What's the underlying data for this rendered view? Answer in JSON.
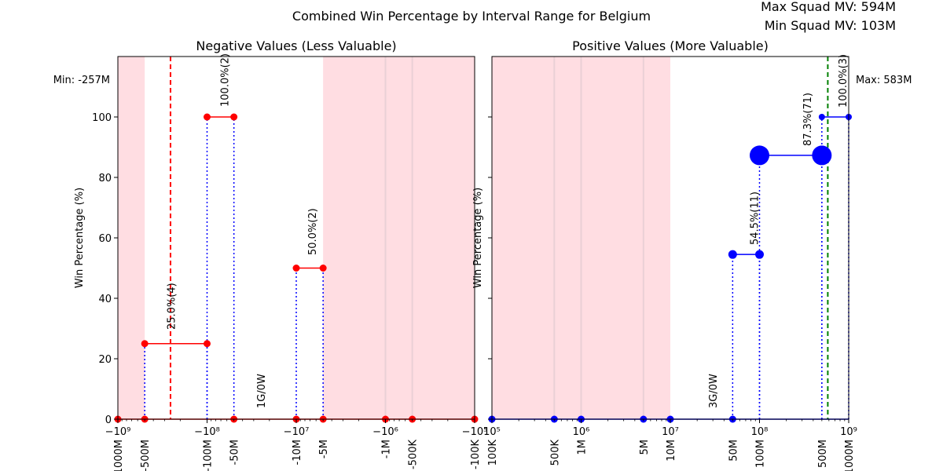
{
  "title": "Combined Win Percentage by Interval Range for Belgium",
  "info": {
    "max_squad_mv": "Max Squad MV: 594M",
    "min_squad_mv": "Min Squad MV: 103M"
  },
  "colors": {
    "negative_line": "#ff0000",
    "positive_line": "#0000ff",
    "connector": "#0000ff",
    "shade": "#ffdde2",
    "label_green": "#008000",
    "label_red": "#ff0000",
    "tick_label_blue": "#0000ff"
  },
  "chart_data": [
    {
      "type": "line",
      "title": "Negative Values (Less Valuable)",
      "ylabel": "Win Percentage (%)",
      "ylim": [
        0,
        120
      ],
      "yticks": [
        0,
        20,
        40,
        60,
        80,
        100
      ],
      "xscale": "symlog-negative",
      "xlim": [
        -1000000000,
        -100000
      ],
      "major_xticks": [
        {
          "value": -1000000000,
          "label": "−10⁹"
        },
        {
          "value": -100000000,
          "label": "−10⁸"
        },
        {
          "value": -10000000,
          "label": "−10⁷"
        },
        {
          "value": -1000000,
          "label": "−10⁶"
        },
        {
          "value": -100000,
          "label": "−10⁵"
        }
      ],
      "interval_labels": [
        {
          "value": -1000000000,
          "label": "-1000M"
        },
        {
          "value": -500000000,
          "label": "-500M"
        },
        {
          "value": -100000000,
          "label": "-100M"
        },
        {
          "value": -50000000,
          "label": "-50M"
        },
        {
          "value": -10000000,
          "label": "-10M"
        },
        {
          "value": -5000000,
          "label": "-5M"
        },
        {
          "value": -1000000,
          "label": "-1M"
        },
        {
          "value": -500000,
          "label": "-500K"
        },
        {
          "value": -100000,
          "label": "-100K"
        }
      ],
      "segments": [
        {
          "x": [
            -500000000,
            -100000000
          ],
          "y": [
            25,
            25
          ],
          "label": "25.0%(4)"
        },
        {
          "x": [
            -100000000,
            -50000000
          ],
          "y": [
            100,
            100
          ],
          "label": "100.0%(2)"
        },
        {
          "x": [
            -10000000,
            -5000000
          ],
          "y": [
            50,
            50
          ],
          "label": "50.0%(2)"
        }
      ],
      "zero_points": [
        -1000000000,
        -500000000,
        -50000000,
        -10000000,
        -5000000,
        -1000000,
        -500000,
        -100000
      ],
      "shaded_ranges": [
        [
          -1000000000,
          -500000000
        ],
        [
          -5000000,
          -100000
        ]
      ],
      "band_lines": [
        -1000000,
        -500000
      ],
      "reference_line": {
        "value": -257000000,
        "label": "Min: -257M"
      },
      "annotations": [
        {
          "x": -25000000,
          "text": "1G/0W"
        }
      ]
    },
    {
      "type": "line",
      "title": "Positive Values (More Valuable)",
      "ylabel": "Win Percentage (%)",
      "ylim": [
        0,
        120
      ],
      "yticks": [
        0,
        20,
        40,
        60,
        80,
        100
      ],
      "xscale": "log",
      "xlim": [
        100000,
        1000000000
      ],
      "major_xticks": [
        {
          "value": 100000,
          "label": "10⁵"
        },
        {
          "value": 1000000,
          "label": "10⁶"
        },
        {
          "value": 10000000,
          "label": "10⁷"
        },
        {
          "value": 100000000,
          "label": "10⁸"
        },
        {
          "value": 1000000000,
          "label": "10⁹"
        }
      ],
      "interval_labels": [
        {
          "value": 100000,
          "label": "100K"
        },
        {
          "value": 500000,
          "label": "500K"
        },
        {
          "value": 1000000,
          "label": "1M"
        },
        {
          "value": 5000000,
          "label": "5M"
        },
        {
          "value": 10000000,
          "label": "10M"
        },
        {
          "value": 50000000,
          "label": "50M"
        },
        {
          "value": 100000000,
          "label": "100M"
        },
        {
          "value": 500000000,
          "label": "500M"
        },
        {
          "value": 1000000000,
          "label": "1000M"
        }
      ],
      "segments": [
        {
          "x": [
            50000000,
            100000000
          ],
          "y": [
            54.5,
            54.5
          ],
          "label": "54.5%(11)",
          "size": 11
        },
        {
          "x": [
            100000000,
            500000000
          ],
          "y": [
            87.3,
            87.3
          ],
          "label": "87.3%(71)",
          "size": 71
        },
        {
          "x": [
            500000000,
            1000000000
          ],
          "y": [
            100,
            100
          ],
          "label": "100.0%(3)",
          "size": 3
        }
      ],
      "zero_points": [
        100000,
        500000,
        1000000,
        5000000,
        10000000,
        50000000
      ],
      "shaded_ranges": [
        [
          100000,
          10000000
        ]
      ],
      "band_lines": [
        500000,
        1000000,
        5000000
      ],
      "reference_line": {
        "value": 583000000,
        "label": "Max: 583M"
      },
      "annotations": [
        {
          "x": 30000000,
          "text": "3G/0W"
        }
      ]
    }
  ]
}
